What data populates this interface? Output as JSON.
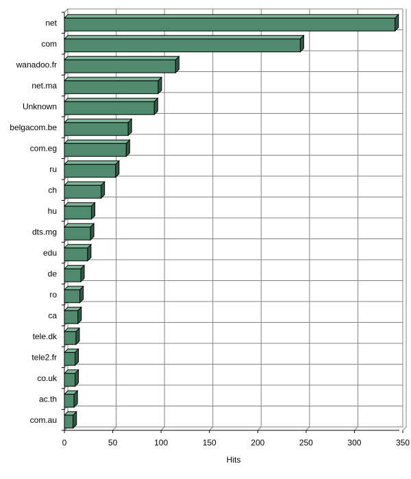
{
  "chart_data": {
    "type": "bar",
    "orientation": "horizontal",
    "categories": [
      "net",
      "com",
      "wanadoo.fr",
      "net.ma",
      "Unknown",
      "belgacom.be",
      "com.eg",
      "ru",
      "ch",
      "hu",
      "dts.mg",
      "edu",
      "de",
      "ro",
      "ca",
      "tele.dk",
      "tele2.fr",
      "co.uk",
      "ac.th",
      "com.au"
    ],
    "values": [
      342,
      244,
      115,
      97,
      93,
      66,
      64,
      53,
      38,
      28,
      27,
      24,
      17,
      16,
      14,
      12,
      11,
      11,
      10,
      9
    ],
    "title": "",
    "xlabel": "Hits",
    "ylabel": "",
    "xlim": [
      0,
      350
    ],
    "x_ticks": [
      0,
      50,
      100,
      150,
      200,
      250,
      300,
      350
    ],
    "grid": true,
    "legend": "none",
    "bar_color": "#4f8a6e",
    "bar_top_color": "#7fb79a",
    "bar_side_color": "#2f5c46"
  }
}
